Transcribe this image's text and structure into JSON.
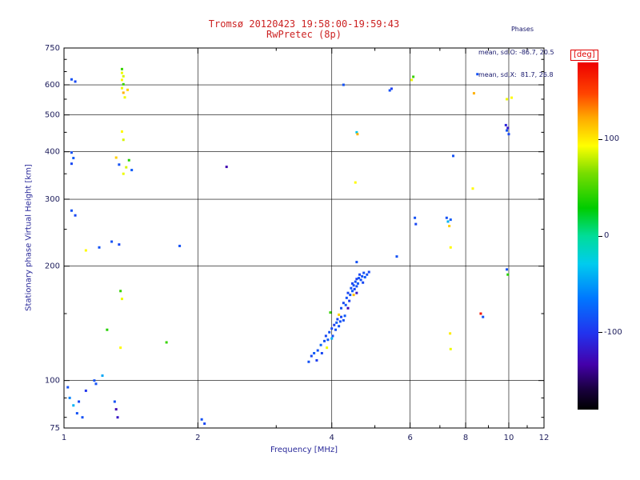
{
  "title": {
    "line1": "Tromsø 20120423 19:58:00-19:59:43",
    "line2": "RwPretec (8p)"
  },
  "annotation": {
    "header": "Phases",
    "line1": "mean, sd,O: -86.7, 20.5",
    "line2": "mean, sd,X:  81.7, 26.8"
  },
  "colorbar": {
    "label": "[deg]",
    "min": -180,
    "max": 180,
    "ticks": [
      100,
      0,
      -100
    ],
    "stops": [
      {
        "t": 0.0,
        "c": "#000000"
      },
      {
        "t": 0.06,
        "c": "#1a0040"
      },
      {
        "t": 0.13,
        "c": "#4400aa"
      },
      {
        "t": 0.22,
        "c": "#2233ee"
      },
      {
        "t": 0.32,
        "c": "#0077ff"
      },
      {
        "t": 0.42,
        "c": "#00ccee"
      },
      {
        "t": 0.5,
        "c": "#00dd99"
      },
      {
        "t": 0.58,
        "c": "#00cc00"
      },
      {
        "t": 0.68,
        "c": "#77dd00"
      },
      {
        "t": 0.76,
        "c": "#ffff00"
      },
      {
        "t": 0.84,
        "c": "#ffaa00"
      },
      {
        "t": 0.91,
        "c": "#ff4400"
      },
      {
        "t": 1.0,
        "c": "#ee0000"
      }
    ]
  },
  "chart_data": {
    "type": "scatter",
    "title": "Tromsø 20120423 19:58:00-19:59:43",
    "subtitle": "RwPretec (8p)",
    "xlabel": "Frequency [MHz]",
    "ylabel": "Stationary phase Virtual Height [km]",
    "xscale": "log",
    "yscale": "log",
    "xlim": [
      1,
      12
    ],
    "ylim": [
      75,
      750
    ],
    "x_major_ticks": [
      1,
      2,
      4,
      6,
      8,
      10,
      12
    ],
    "x_minor_ticks": [
      3,
      5,
      7,
      9,
      11
    ],
    "x_gridlines": [
      2,
      4,
      6,
      8,
      10
    ],
    "y_major_ticks": [
      75,
      100,
      200,
      300,
      400,
      500,
      600,
      750
    ],
    "y_minor_ticks": [
      80,
      90,
      150,
      250,
      350,
      450,
      550,
      650,
      700
    ],
    "y_gridlines": [
      100,
      200,
      300,
      400,
      500,
      600
    ],
    "grid": true,
    "legend": "colorbar right, phase in degrees -180..180",
    "points_format": [
      "frequency_MHz",
      "virtual_height_km",
      "phase_deg"
    ],
    "points": [
      [
        1.04,
        620,
        -85
      ],
      [
        1.06,
        612,
        -90
      ],
      [
        1.35,
        660,
        45
      ],
      [
        1.35,
        645,
        90
      ],
      [
        1.36,
        632,
        85
      ],
      [
        1.35,
        618,
        95
      ],
      [
        1.36,
        602,
        45
      ],
      [
        1.35,
        588,
        90
      ],
      [
        1.36,
        572,
        120
      ],
      [
        1.37,
        556,
        90
      ],
      [
        1.39,
        582,
        110
      ],
      [
        1.35,
        452,
        95
      ],
      [
        1.36,
        430,
        85
      ],
      [
        1.04,
        398,
        -85
      ],
      [
        1.04,
        372,
        -90
      ],
      [
        1.05,
        385,
        -80
      ],
      [
        1.31,
        386,
        110
      ],
      [
        1.33,
        370,
        -85
      ],
      [
        1.38,
        364,
        85
      ],
      [
        1.4,
        380,
        40
      ],
      [
        1.36,
        350,
        90
      ],
      [
        1.42,
        358,
        -80
      ],
      [
        2.32,
        365,
        -130
      ],
      [
        1.04,
        280,
        -85
      ],
      [
        1.06,
        272,
        -90
      ],
      [
        1.28,
        232,
        -85
      ],
      [
        1.33,
        228,
        -90
      ],
      [
        1.2,
        224,
        -85
      ],
      [
        1.12,
        220,
        95
      ],
      [
        1.82,
        226,
        -85
      ],
      [
        1.34,
        172,
        45
      ],
      [
        1.35,
        164,
        90
      ],
      [
        1.25,
        136,
        40
      ],
      [
        1.34,
        122,
        95
      ],
      [
        1.7,
        126,
        45
      ],
      [
        1.02,
        96,
        -85
      ],
      [
        1.03,
        90,
        -60
      ],
      [
        1.05,
        86,
        -40
      ],
      [
        1.07,
        82,
        -85
      ],
      [
        1.08,
        88,
        -90
      ],
      [
        1.1,
        80,
        -85
      ],
      [
        1.12,
        94,
        -100
      ],
      [
        1.17,
        100,
        -85
      ],
      [
        1.22,
        103,
        -45
      ],
      [
        1.18,
        98,
        -85
      ],
      [
        1.31,
        84,
        -130
      ],
      [
        1.32,
        80,
        -120
      ],
      [
        1.3,
        88,
        -85
      ],
      [
        2.04,
        79,
        -85
      ],
      [
        2.07,
        77,
        -90
      ],
      [
        3.55,
        112,
        -85
      ],
      [
        3.6,
        116,
        -90
      ],
      [
        3.65,
        118,
        -80
      ],
      [
        3.7,
        113,
        -95
      ],
      [
        3.72,
        120,
        -85
      ],
      [
        3.78,
        124,
        -75
      ],
      [
        3.8,
        118,
        -90
      ],
      [
        3.85,
        127,
        -85
      ],
      [
        3.88,
        131,
        -90
      ],
      [
        3.92,
        128,
        -80
      ],
      [
        3.95,
        134,
        -85
      ],
      [
        4.0,
        137,
        -90
      ],
      [
        4.02,
        131,
        -85
      ],
      [
        4.05,
        140,
        -95
      ],
      [
        4.08,
        136,
        -85
      ],
      [
        4.1,
        142,
        -80
      ],
      [
        4.12,
        145,
        -90
      ],
      [
        4.15,
        139,
        -85
      ],
      [
        4.18,
        143,
        -85
      ],
      [
        4.2,
        147,
        -90
      ],
      [
        4.25,
        144,
        -85
      ],
      [
        4.28,
        148,
        -80
      ],
      [
        4.15,
        149,
        110
      ],
      [
        4.0,
        129,
        -40
      ],
      [
        3.9,
        122,
        90
      ],
      [
        3.97,
        151,
        45
      ],
      [
        4.2,
        155,
        -85
      ],
      [
        4.25,
        160,
        -90
      ],
      [
        4.3,
        158,
        -80
      ],
      [
        4.32,
        165,
        -85
      ],
      [
        4.35,
        170,
        -90
      ],
      [
        4.38,
        162,
        -95
      ],
      [
        4.4,
        168,
        -85
      ],
      [
        4.42,
        175,
        -85
      ],
      [
        4.45,
        172,
        -80
      ],
      [
        4.45,
        180,
        -90
      ],
      [
        4.48,
        178,
        -85
      ],
      [
        4.5,
        174,
        -90
      ],
      [
        4.52,
        182,
        -85
      ],
      [
        4.55,
        177,
        -85
      ],
      [
        4.55,
        185,
        -95
      ],
      [
        4.58,
        180,
        -80
      ],
      [
        4.6,
        186,
        -85
      ],
      [
        4.62,
        190,
        -90
      ],
      [
        4.65,
        184,
        -85
      ],
      [
        4.68,
        188,
        -85
      ],
      [
        4.7,
        181,
        -90
      ],
      [
        4.72,
        192,
        -85
      ],
      [
        4.75,
        187,
        -80
      ],
      [
        4.55,
        170,
        -120
      ],
      [
        4.48,
        168,
        115
      ],
      [
        4.35,
        155,
        -130
      ],
      [
        4.8,
        190,
        -85
      ],
      [
        4.85,
        193,
        -90
      ],
      [
        4.55,
        205,
        -85
      ],
      [
        4.25,
        600,
        -85
      ],
      [
        4.55,
        450,
        -30
      ],
      [
        4.57,
        445,
        120
      ],
      [
        4.52,
        332,
        95
      ],
      [
        5.4,
        580,
        -85
      ],
      [
        5.45,
        586,
        -95
      ],
      [
        5.6,
        212,
        -85
      ],
      [
        6.05,
        618,
        90
      ],
      [
        6.1,
        630,
        45
      ],
      [
        6.15,
        268,
        -85
      ],
      [
        6.18,
        258,
        -90
      ],
      [
        7.5,
        390,
        -85
      ],
      [
        7.25,
        268,
        -85
      ],
      [
        7.3,
        262,
        -40
      ],
      [
        7.35,
        255,
        110
      ],
      [
        7.4,
        265,
        -80
      ],
      [
        7.4,
        224,
        95
      ],
      [
        7.4,
        121,
        90
      ],
      [
        7.38,
        133,
        100
      ],
      [
        8.3,
        320,
        95
      ],
      [
        8.5,
        640,
        -85
      ],
      [
        8.35,
        570,
        120
      ],
      [
        8.65,
        150,
        170
      ],
      [
        8.75,
        147,
        -85
      ],
      [
        9.9,
        550,
        90
      ],
      [
        10.15,
        555,
        95
      ],
      [
        9.85,
        470,
        -110
      ],
      [
        9.9,
        455,
        -85
      ],
      [
        9.95,
        462,
        -120
      ],
      [
        10.0,
        445,
        -90
      ],
      [
        9.9,
        196,
        -85
      ],
      [
        9.95,
        190,
        40
      ]
    ]
  }
}
